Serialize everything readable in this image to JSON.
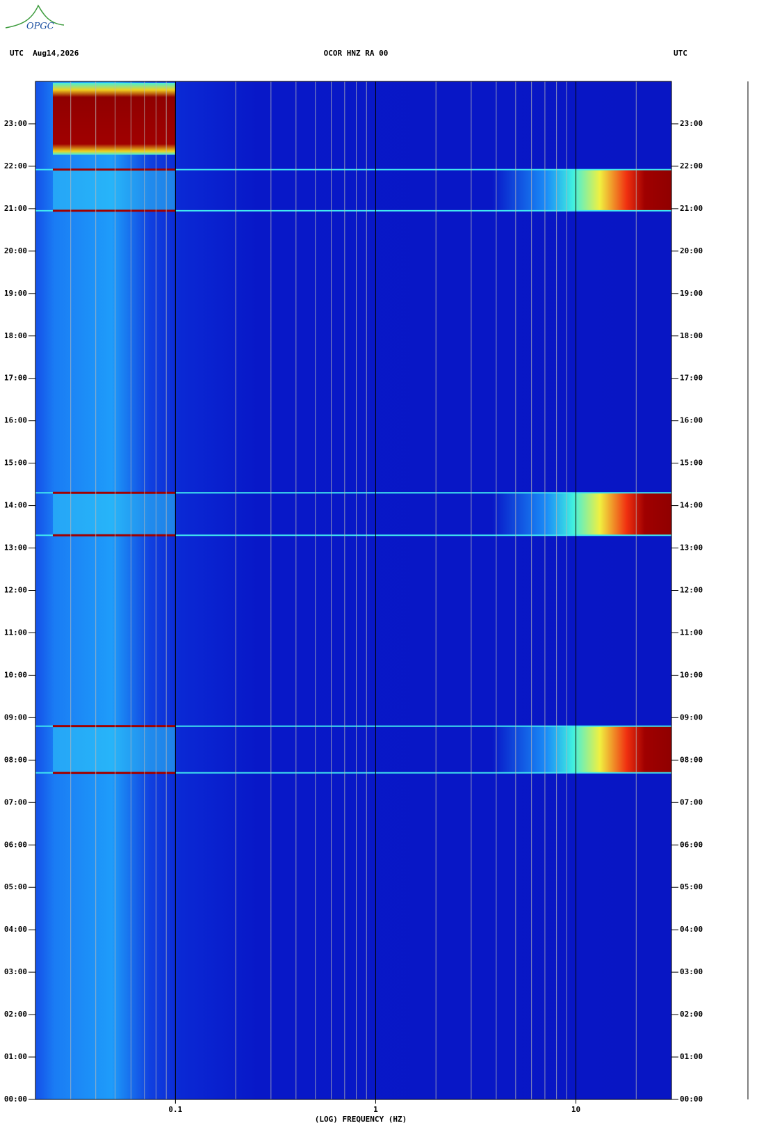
{
  "logo": "OPGC",
  "chart_data": {
    "type": "spectrogram",
    "title": "OCOR HNZ RA 00",
    "date_label": "UTC  Aug14,2026",
    "right_label": "UTC",
    "x_label": "(LOG) FREQUENCY (HZ)",
    "log_x": true,
    "xlim": [
      0.02,
      30
    ],
    "xticks": [
      0.1,
      1,
      10
    ],
    "xgrid": [
      0.03,
      0.04,
      0.05,
      0.06,
      0.07,
      0.08,
      0.09,
      0.2,
      0.3,
      0.4,
      0.5,
      0.6,
      0.7,
      0.8,
      0.9,
      2,
      3,
      4,
      5,
      6,
      7,
      8,
      9,
      20
    ],
    "ylim": [
      0,
      24
    ],
    "yticks": [
      {
        "value": 0,
        "label": "00:00"
      },
      {
        "value": 1,
        "label": "01:00"
      },
      {
        "value": 2,
        "label": "02:00"
      },
      {
        "value": 3,
        "label": "03:00"
      },
      {
        "value": 4,
        "label": "04:00"
      },
      {
        "value": 5,
        "label": "05:00"
      },
      {
        "value": 6,
        "label": "06:00"
      },
      {
        "value": 7,
        "label": "07:00"
      },
      {
        "value": 8,
        "label": "08:00"
      },
      {
        "value": 9,
        "label": "09:00"
      },
      {
        "value": 10,
        "label": "10:00"
      },
      {
        "value": 11,
        "label": "11:00"
      },
      {
        "value": 12,
        "label": "12:00"
      },
      {
        "value": 13,
        "label": "13:00"
      },
      {
        "value": 14,
        "label": "14:00"
      },
      {
        "value": 15,
        "label": "15:00"
      },
      {
        "value": 16,
        "label": "16:00"
      },
      {
        "value": 17,
        "label": "17:00"
      },
      {
        "value": 18,
        "label": "18:00"
      },
      {
        "value": 19,
        "label": "19:00"
      },
      {
        "value": 20,
        "label": "20:00"
      },
      {
        "value": 21,
        "label": "21:00"
      },
      {
        "value": 22,
        "label": "22:00"
      },
      {
        "value": 23,
        "label": "23:00"
      }
    ],
    "events": [
      [
        7.7,
        8.8
      ],
      [
        13.3,
        14.3
      ],
      [
        20.95,
        21.92
      ]
    ],
    "low_freq_burst": [
      22.27,
      23.97
    ]
  }
}
